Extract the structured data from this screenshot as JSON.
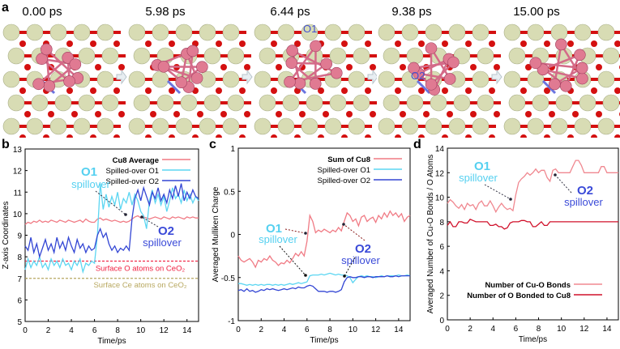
{
  "panel_a": {
    "label": "a",
    "frames": [
      "0.00 ps",
      "5.98 ps",
      "6.44 ps",
      "9.38 ps",
      "15.00 ps"
    ],
    "frame_annotations": [
      "",
      "",
      "O1",
      "O2",
      ""
    ],
    "colors": {
      "ce": "#d8dcb4",
      "o": "#d41010",
      "cu": "#e07a92",
      "spilled_o": "#6a74e0"
    }
  },
  "chart_data": [
    {
      "panel": "b",
      "type": "line",
      "xlabel": "Time/ps",
      "ylabel": "Z-axis Coordinates",
      "xlim": [
        0,
        15
      ],
      "ylim": [
        5,
        13
      ],
      "xticks": [
        0,
        2,
        4,
        6,
        8,
        10,
        12,
        14
      ],
      "yticks": [
        5,
        6,
        7,
        8,
        9,
        10,
        11,
        12,
        13
      ],
      "x_step": 0.25,
      "legend": "top-right",
      "series": [
        {
          "name": "Cu8 Average",
          "color": "#f07a84",
          "bold": true,
          "values": [
            9.5,
            9.6,
            9.55,
            9.65,
            9.6,
            9.7,
            9.6,
            9.65,
            9.6,
            9.7,
            9.65,
            9.6,
            9.7,
            9.65,
            9.6,
            9.7,
            9.65,
            9.6,
            9.65,
            9.7,
            9.6,
            9.75,
            9.65,
            9.6,
            9.6,
            9.75,
            9.8,
            9.7,
            9.75,
            9.7,
            9.65,
            9.7,
            9.65,
            9.6,
            9.65,
            9.6,
            9.65,
            9.75,
            9.85,
            9.9,
            9.8,
            9.85,
            9.8,
            9.75,
            9.8,
            9.85,
            9.8,
            9.75,
            9.85,
            9.8,
            9.75,
            9.85,
            9.8,
            9.85,
            9.8,
            9.75,
            9.85,
            9.8,
            9.85,
            9.8,
            9.8
          ]
        },
        {
          "name": "Spilled-over O1",
          "color": "#5cd6f2",
          "values": [
            7.4,
            7.9,
            7.5,
            7.8,
            7.6,
            8.0,
            7.5,
            7.7,
            7.4,
            7.9,
            7.6,
            7.8,
            7.5,
            7.9,
            7.6,
            7.7,
            7.4,
            7.8,
            7.6,
            7.9,
            7.3,
            7.7,
            7.6,
            7.8,
            7.7,
            9.0,
            11.4,
            10.2,
            10.9,
            10.3,
            10.8,
            10.4,
            11.0,
            10.2,
            10.7,
            10.5,
            11.0,
            10.4,
            10.9,
            10.6,
            10.1,
            9.9,
            9.3,
            10.6,
            11.1,
            10.5,
            10.9,
            10.4,
            10.8,
            10.1,
            10.6,
            11.2,
            10.7,
            10.9,
            10.5,
            11.1,
            10.6,
            10.9,
            10.5,
            10.8,
            10.6
          ]
        },
        {
          "name": "Spilled-over O2",
          "color": "#3346d4",
          "values": [
            8.5,
            8.3,
            8.9,
            8.2,
            8.6,
            8.0,
            8.4,
            8.8,
            8.3,
            8.6,
            8.2,
            8.9,
            8.4,
            8.7,
            8.3,
            8.9,
            8.5,
            8.2,
            8.8,
            8.4,
            8.6,
            8.2,
            8.5,
            8.3,
            8.4,
            9.0,
            9.3,
            8.9,
            9.1,
            8.6,
            8.3,
            8.5,
            8.2,
            8.4,
            8.3,
            8.5,
            8.3,
            9.8,
            10.7,
            11.1,
            10.6,
            11.2,
            10.8,
            10.4,
            11.0,
            10.7,
            11.2,
            10.6,
            10.9,
            10.5,
            11.1,
            10.7,
            11.3,
            10.8,
            11.4,
            10.6,
            11.0,
            10.7,
            11.1,
            10.8,
            10.7
          ]
        }
      ],
      "reference_lines": [
        {
          "label": "Surface O  atoms on CeO₂",
          "y": 7.8,
          "color": "#f02040"
        },
        {
          "label": "Surface Ce atoms on CeO₂",
          "y": 7.0,
          "color": "#b8a860"
        }
      ],
      "annotations": [
        {
          "title": "O1",
          "text": "spillover",
          "color": "#55d0f0"
        },
        {
          "title": "O2",
          "text": "spillover",
          "color": "#3a4ad8"
        }
      ]
    },
    {
      "panel": "c",
      "type": "line",
      "xlabel": "Time/ps",
      "ylabel": "Averaged Mulliken Charge",
      "xlim": [
        0,
        15
      ],
      "ylim": [
        -1,
        1
      ],
      "xticks": [
        0,
        2,
        4,
        6,
        8,
        10,
        12,
        14
      ],
      "yticks": [
        -1,
        -0.5,
        0,
        0.5,
        1
      ],
      "x_step": 0.25,
      "legend": "top-right",
      "series": [
        {
          "name": "Sum of Cu8",
          "color": "#f07a84",
          "bold": true,
          "values": [
            -0.25,
            -0.3,
            -0.32,
            -0.3,
            -0.28,
            -0.32,
            -0.38,
            -0.3,
            -0.32,
            -0.28,
            -0.3,
            -0.25,
            -0.3,
            -0.32,
            -0.36,
            -0.33,
            -0.34,
            -0.3,
            -0.33,
            -0.28,
            -0.22,
            -0.25,
            -0.2,
            -0.25,
            -0.08,
            0.22,
            0.15,
            0.02,
            0.05,
            0.03,
            0.06,
            0.04,
            0.02,
            0.05,
            0.03,
            0.08,
            0.04,
            0.15,
            0.25,
            0.22,
            0.15,
            0.18,
            0.1,
            0.2,
            0.22,
            0.15,
            0.18,
            0.2,
            0.14,
            0.22,
            0.18,
            0.25,
            0.2,
            0.27,
            0.22,
            0.25,
            0.2,
            0.24,
            0.15,
            0.2,
            0.22
          ]
        },
        {
          "name": "Spilled-over O1",
          "color": "#5cd6f2",
          "values": [
            -0.57,
            -0.57,
            -0.58,
            -0.59,
            -0.58,
            -0.59,
            -0.58,
            -0.59,
            -0.58,
            -0.59,
            -0.58,
            -0.58,
            -0.59,
            -0.58,
            -0.59,
            -0.58,
            -0.59,
            -0.58,
            -0.57,
            -0.58,
            -0.57,
            -0.56,
            -0.57,
            -0.56,
            -0.55,
            -0.48,
            -0.47,
            -0.47,
            -0.47,
            -0.46,
            -0.47,
            -0.46,
            -0.45,
            -0.46,
            -0.47,
            -0.46,
            -0.47,
            -0.47,
            -0.48,
            -0.5,
            -0.56,
            -0.52,
            -0.49,
            -0.48,
            -0.49,
            -0.48,
            -0.49,
            -0.49,
            -0.5,
            -0.49,
            -0.48,
            -0.49,
            -0.48,
            -0.48,
            -0.48,
            -0.48,
            -0.47,
            -0.48,
            -0.48,
            -0.47,
            -0.48
          ]
        },
        {
          "name": "Spilled-over O2",
          "color": "#3346d4",
          "values": [
            -0.65,
            -0.64,
            -0.66,
            -0.63,
            -0.66,
            -0.65,
            -0.67,
            -0.66,
            -0.64,
            -0.65,
            -0.63,
            -0.64,
            -0.63,
            -0.64,
            -0.65,
            -0.64,
            -0.63,
            -0.64,
            -0.63,
            -0.62,
            -0.63,
            -0.61,
            -0.62,
            -0.62,
            -0.6,
            -0.59,
            -0.6,
            -0.63,
            -0.66,
            -0.66,
            -0.66,
            -0.67,
            -0.66,
            -0.66,
            -0.67,
            -0.66,
            -0.64,
            -0.55,
            -0.5,
            -0.49,
            -0.5,
            -0.5,
            -0.49,
            -0.49,
            -0.5,
            -0.49,
            -0.49,
            -0.5,
            -0.49,
            -0.49,
            -0.49,
            -0.49,
            -0.48,
            -0.49,
            -0.49,
            -0.48,
            -0.49,
            -0.48,
            -0.48,
            -0.48,
            -0.48
          ]
        }
      ],
      "annotations": [
        {
          "title": "O1",
          "text": "spillover",
          "color": "#55d0f0"
        },
        {
          "title": "O2",
          "text": "spillover",
          "color": "#3a4ad8"
        }
      ]
    },
    {
      "panel": "d",
      "type": "line",
      "xlabel": "Time/ps",
      "ylabel": "Averaged Number of Cu-O Bonds / O Atoms",
      "xlim": [
        0,
        15
      ],
      "ylim": [
        0,
        14
      ],
      "xticks": [
        0,
        2,
        4,
        6,
        8,
        10,
        12,
        14
      ],
      "yticks": [
        0,
        2,
        4,
        6,
        8,
        10,
        12,
        14
      ],
      "x_step": 0.25,
      "legend": "bottom-right",
      "series": [
        {
          "name": "Number of Cu-O Bonds",
          "color": "#f08890",
          "bold": true,
          "values": [
            9.5,
            9.8,
            9.6,
            9.3,
            9.1,
            9.4,
            9.0,
            9.5,
            9.3,
            9.4,
            9.0,
            9.5,
            9.7,
            9.3,
            9.3,
            9.7,
            9.3,
            8.8,
            9.2,
            9.5,
            9.2,
            9.0,
            9.1,
            8.9,
            10.2,
            11.2,
            11.5,
            11.7,
            12.0,
            11.8,
            12.0,
            12.3,
            12.0,
            12.2,
            12.2,
            11.6,
            11.3,
            12.2,
            12.3,
            12.0,
            12.0,
            12.0,
            12.0,
            12.0,
            12.5,
            13.0,
            13.0,
            12.6,
            12.0,
            12.0,
            12.0,
            12.0,
            12.0,
            12.0,
            12.5,
            12.5,
            12.0,
            12.0,
            12.0,
            12.0,
            12.0
          ]
        },
        {
          "name": "Number of O Bonded to Cu8",
          "color": "#d0102a",
          "bold": true,
          "values": [
            7.7,
            8.0,
            7.6,
            7.6,
            8.0,
            8.0,
            7.9,
            7.9,
            8.2,
            8.1,
            8.0,
            8.0,
            8.0,
            8.0,
            8.0,
            7.7,
            7.7,
            7.8,
            7.6,
            7.6,
            7.4,
            7.5,
            7.9,
            8.0,
            8.0,
            8.0,
            8.1,
            8.1,
            8.0,
            8.0,
            7.6,
            7.6,
            7.8,
            8.0,
            7.7,
            7.7,
            8.0,
            8.0,
            8.0,
            8.0,
            8.0,
            8.0,
            8.0,
            8.0,
            8.0,
            8.0,
            8.0,
            8.0,
            8.0,
            8.0,
            8.0,
            8.0,
            8.0,
            8.0,
            8.0,
            8.0,
            8.0,
            8.0,
            8.0,
            8.0,
            8.0
          ]
        }
      ],
      "annotations": [
        {
          "title": "O1",
          "text": "spillover",
          "color": "#55d0f0"
        },
        {
          "title": "O2",
          "text": "spillover",
          "color": "#3a4ad8"
        }
      ]
    }
  ]
}
